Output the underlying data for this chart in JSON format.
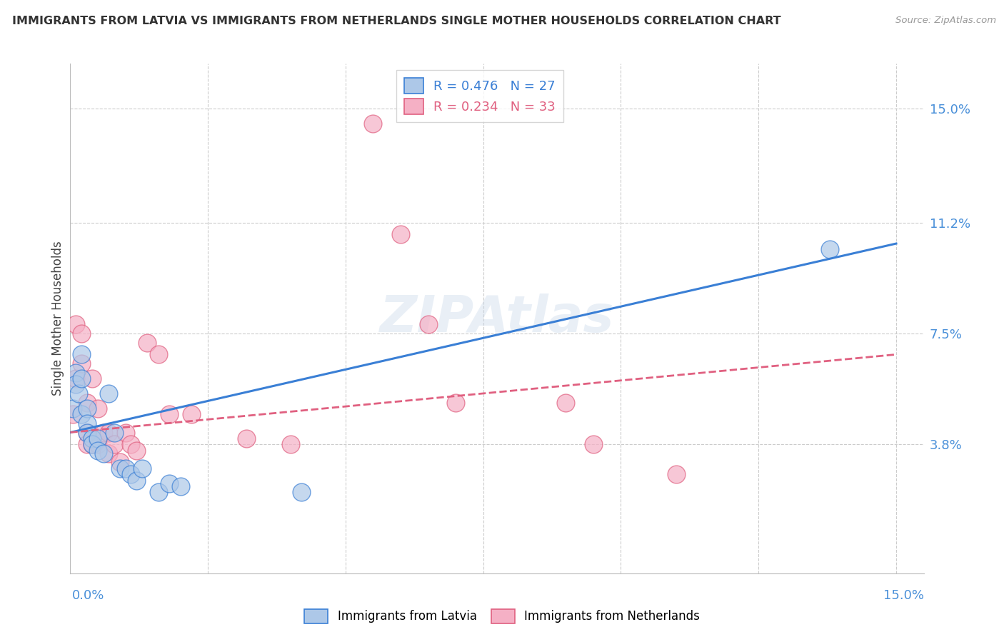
{
  "title": "IMMIGRANTS FROM LATVIA VS IMMIGRANTS FROM NETHERLANDS SINGLE MOTHER HOUSEHOLDS CORRELATION CHART",
  "source": "Source: ZipAtlas.com",
  "ylabel": "Single Mother Households",
  "xlim": [
    0.0,
    0.155
  ],
  "ylim": [
    -0.005,
    0.165
  ],
  "y_ticks": [
    0.038,
    0.075,
    0.112,
    0.15
  ],
  "y_tick_labels": [
    "3.8%",
    "7.5%",
    "11.2%",
    "15.0%"
  ],
  "latvia_R": 0.476,
  "latvia_N": 27,
  "netherlands_R": 0.234,
  "netherlands_N": 33,
  "latvia_color": "#adc8e8",
  "netherlands_color": "#f5b0c5",
  "latvia_line_color": "#3a7fd5",
  "netherlands_line_color": "#e06080",
  "background_color": "#ffffff",
  "grid_color": "#cccccc",
  "latvia_scatter_x": [
    0.0005,
    0.001,
    0.001,
    0.0015,
    0.002,
    0.002,
    0.002,
    0.003,
    0.003,
    0.003,
    0.004,
    0.004,
    0.005,
    0.005,
    0.006,
    0.007,
    0.008,
    0.009,
    0.01,
    0.011,
    0.012,
    0.013,
    0.016,
    0.018,
    0.02,
    0.042,
    0.138
  ],
  "latvia_scatter_y": [
    0.05,
    0.062,
    0.058,
    0.055,
    0.068,
    0.06,
    0.048,
    0.05,
    0.045,
    0.042,
    0.04,
    0.038,
    0.04,
    0.036,
    0.035,
    0.055,
    0.042,
    0.03,
    0.03,
    0.028,
    0.026,
    0.03,
    0.022,
    0.025,
    0.024,
    0.022,
    0.103
  ],
  "netherlands_scatter_x": [
    0.0005,
    0.001,
    0.001,
    0.002,
    0.002,
    0.003,
    0.003,
    0.003,
    0.004,
    0.004,
    0.005,
    0.005,
    0.006,
    0.007,
    0.007,
    0.008,
    0.009,
    0.01,
    0.011,
    0.012,
    0.014,
    0.016,
    0.018,
    0.022,
    0.032,
    0.04,
    0.055,
    0.06,
    0.065,
    0.07,
    0.09,
    0.095,
    0.11
  ],
  "netherlands_scatter_y": [
    0.048,
    0.078,
    0.06,
    0.075,
    0.065,
    0.052,
    0.042,
    0.038,
    0.06,
    0.038,
    0.05,
    0.038,
    0.042,
    0.042,
    0.035,
    0.038,
    0.032,
    0.042,
    0.038,
    0.036,
    0.072,
    0.068,
    0.048,
    0.048,
    0.04,
    0.038,
    0.145,
    0.108,
    0.078,
    0.052,
    0.052,
    0.038,
    0.028
  ],
  "watermark": "ZIPAtlas",
  "latvia_line_start_y": 0.042,
  "latvia_line_end_y": 0.105,
  "netherlands_line_start_y": 0.042,
  "netherlands_line_end_y": 0.068
}
